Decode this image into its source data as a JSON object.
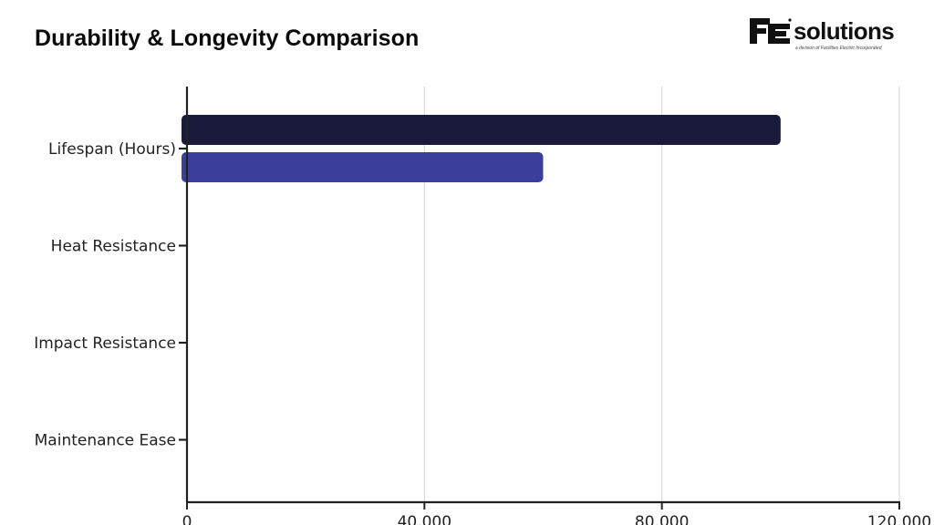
{
  "header": {
    "title": "Durability & Longevity Comparison"
  },
  "logo": {
    "wordmark": "solutions",
    "tagline": "a division of Facilities Electric Incorporated",
    "colors": {
      "ink": "#111111"
    }
  },
  "chart_data": {
    "type": "bar",
    "orientation": "horizontal",
    "title": "",
    "xlabel": "",
    "ylabel": "",
    "categories": [
      "Lifespan (Hours)",
      "Heat Resistance",
      "Impact Resistance",
      "Maintenance Ease"
    ],
    "series": [
      {
        "color": "#1a1a3a",
        "values": [
          100000,
          0,
          0,
          0
        ]
      },
      {
        "color": "#3b3f99",
        "values": [
          60000,
          0,
          0,
          0
        ]
      }
    ],
    "xlim": [
      0,
      120000
    ],
    "x_ticks": [
      0,
      40000,
      80000,
      120000
    ],
    "x_tick_labels": [
      "0",
      "40,000",
      "80,000",
      "120,000"
    ],
    "grid": "vertical",
    "legend": "none"
  }
}
